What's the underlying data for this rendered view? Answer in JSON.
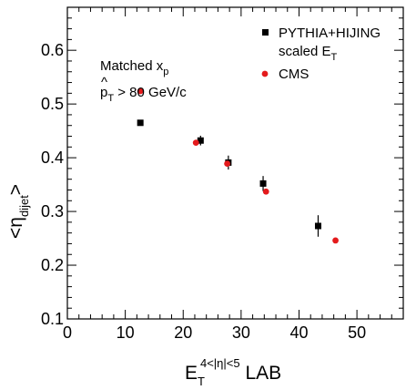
{
  "chart_data": {
    "type": "scatter",
    "xlim": [
      0,
      58
    ],
    "ylim": [
      0.1,
      0.68
    ],
    "x_ticks": [
      0,
      10,
      20,
      30,
      40,
      50
    ],
    "y_ticks": [
      0.1,
      0.2,
      0.3,
      0.4,
      0.5,
      0.6
    ],
    "x_tick_labels": [
      "0",
      "10",
      "20",
      "30",
      "40",
      "50"
    ],
    "y_tick_labels": [
      "0.1",
      "0.2",
      "0.3",
      "0.4",
      "0.5",
      "0.6"
    ],
    "xlabel": {
      "base": "E",
      "sub": "T",
      "sup": "4<|η|<5",
      "suffix": " LAB"
    },
    "ylabel": {
      "open": "<",
      "base": "η",
      "sub": "dijet",
      "close": ">"
    },
    "annotation_matched": {
      "text": "Matched x",
      "sub": "p"
    },
    "annotation_pthat": {
      "hat": "^",
      "base": "p",
      "sub": "T",
      "rest": " > 80 GeV/c"
    },
    "legend_position": "top-right",
    "grid": false,
    "series": [
      {
        "name": "PYTHIA+HIJING",
        "name_line2": {
          "text": "scaled E",
          "sub": "T"
        },
        "marker": "square",
        "color": "#000000",
        "points": [
          {
            "x": 12.6,
            "y": 0.465,
            "err": 0.0
          },
          {
            "x": 23.0,
            "y": 0.432,
            "err": 0.009
          },
          {
            "x": 27.8,
            "y": 0.391,
            "err": 0.013
          },
          {
            "x": 33.8,
            "y": 0.352,
            "err": 0.014
          },
          {
            "x": 43.3,
            "y": 0.273,
            "err": 0.02
          }
        ]
      },
      {
        "name": "CMS",
        "marker": "circle",
        "color": "#e41a1c",
        "points": [
          {
            "x": 12.6,
            "y": 0.524,
            "err": 0.0
          },
          {
            "x": 22.2,
            "y": 0.428,
            "err": 0.0
          },
          {
            "x": 27.6,
            "y": 0.389,
            "err": 0.0
          },
          {
            "x": 34.3,
            "y": 0.337,
            "err": 0.0
          },
          {
            "x": 46.3,
            "y": 0.246,
            "err": 0.0
          }
        ]
      }
    ]
  }
}
